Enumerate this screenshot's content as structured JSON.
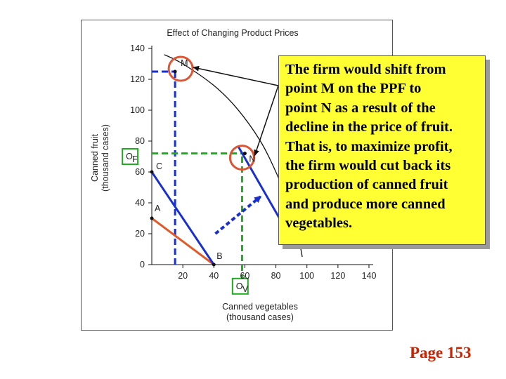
{
  "chart_data": {
    "type": "line",
    "title": "Effect of Changing Product Prices",
    "xlabel": [
      "Canned vegetables",
      "(thousand cases)"
    ],
    "ylabel": [
      "Canned fruit",
      "(thousand cases)"
    ],
    "xlim": [
      0,
      140
    ],
    "ylim": [
      0,
      140
    ],
    "x_ticks": [
      20,
      40,
      60,
      80,
      100,
      120,
      140
    ],
    "y_ticks": [
      0,
      20,
      40,
      60,
      80,
      100,
      120,
      140
    ],
    "grid": false,
    "ppf": [
      [
        8,
        136
      ],
      [
        20,
        130
      ],
      [
        40,
        116
      ],
      [
        55,
        101
      ],
      [
        70,
        80
      ],
      [
        80,
        60
      ],
      [
        88,
        40
      ],
      [
        94,
        20
      ],
      [
        97,
        5
      ]
    ],
    "points": [
      {
        "label": "M",
        "x": 15,
        "y": 125
      },
      {
        "label": "N",
        "x": 60,
        "y": 72
      },
      {
        "label": "A",
        "x": 0,
        "y": 30
      },
      {
        "label": "B",
        "x": 40,
        "y": 0
      },
      {
        "label": "C",
        "x": 0,
        "y": 60
      }
    ],
    "price_lines": [
      {
        "from": [
          0,
          30
        ],
        "to": [
          40,
          0
        ],
        "color": "#e05a2a"
      },
      {
        "from": [
          0,
          60
        ],
        "to": [
          40,
          0
        ],
        "color": "#1a2fd0"
      },
      {
        "from": [
          56,
          76
        ],
        "to": [
          88,
          20
        ],
        "color": "#1a2fd0"
      }
    ],
    "annotations": [
      {
        "text": "O",
        "sub": "F",
        "x": -14,
        "y": 70
      },
      {
        "text": "O",
        "sub": "V",
        "x": 57,
        "y": -14
      }
    ],
    "colors": {
      "ppf": "#111111",
      "circle": "#dd5533",
      "blue_dash": "#1a2fd0",
      "green_dash": "#22aa22"
    }
  },
  "callout": {
    "lines": [
      "The firm would shift from",
      "point M on the PPF to",
      "point N as a result of the",
      "decline in the price of fruit.",
      "That is, to maximize profit,",
      "the firm would cut back its",
      "production of canned fruit",
      "and produce more canned",
      "vegetables."
    ]
  },
  "page_number": "Page 153"
}
